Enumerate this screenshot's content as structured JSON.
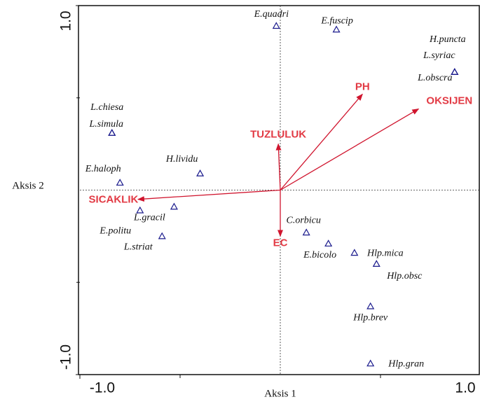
{
  "chart_data": {
    "type": "scatter",
    "xlabel": "Aksis 1",
    "ylabel": "Aksis 2",
    "xlim": [
      -1.0,
      1.0
    ],
    "ylim": [
      -1.0,
      1.0
    ],
    "xticks": [
      {
        "value": -1.0,
        "label": "-1.0"
      },
      {
        "value": 1.0,
        "label": "1.0"
      }
    ],
    "yticks": [
      {
        "value": -1.0,
        "label": "-1.0"
      },
      {
        "value": 1.0,
        "label": "1.0"
      }
    ],
    "xminorticks": [
      -0.5,
      0.5
    ],
    "yminorticks": [
      -0.5,
      0.5
    ],
    "series": [
      {
        "color": "#1a1a8c",
        "labels": [
          "E.quadri",
          "E.fuscip",
          "H.puncta",
          "L.syriac",
          "L.obscra",
          "L.chiesa",
          "L.simula",
          "H.lividu",
          "E.haloph",
          "L.gracil",
          "E.politu",
          "L.striat",
          "C.orbicu",
          "E.bicolo",
          "Hlp.mica",
          "Hlp.obsc",
          "Hlp.brev",
          "Hlp.gran"
        ],
        "x": [
          -0.02,
          0.28,
          0.87,
          0.87,
          0.87,
          -0.84,
          -0.84,
          -0.4,
          -0.8,
          -0.53,
          -0.7,
          -0.59,
          0.13,
          0.24,
          0.37,
          0.48,
          0.45,
          0.45
        ],
        "values": [
          0.89,
          0.87,
          0.64,
          0.64,
          0.64,
          0.31,
          0.31,
          0.09,
          0.04,
          -0.09,
          -0.11,
          -0.25,
          -0.23,
          -0.29,
          -0.34,
          -0.4,
          -0.63,
          -0.94
        ]
      }
    ],
    "arrow_color": "#d0152e",
    "arrows": [
      {
        "label": "PH",
        "x": 0.41,
        "y": 0.52
      },
      {
        "label": "OKSIJEN",
        "x": 0.69,
        "y": 0.44
      },
      {
        "label": "TUZLULUK",
        "x": -0.01,
        "y": 0.25
      },
      {
        "label": "EC",
        "x": 0.0,
        "y": -0.25
      },
      {
        "label": "SICAKLIK",
        "x": -0.71,
        "y": -0.05
      }
    ]
  }
}
